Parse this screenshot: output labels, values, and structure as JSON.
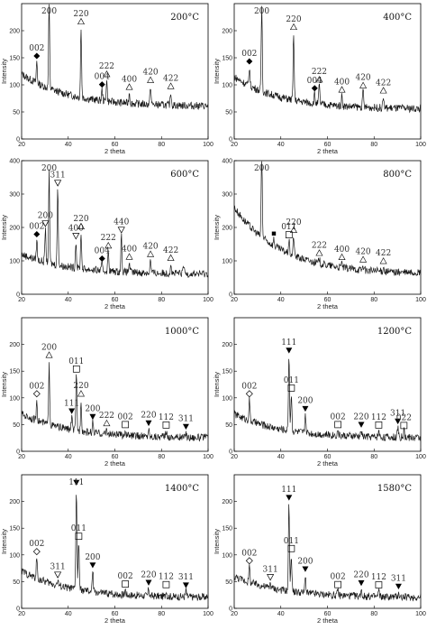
{
  "colors": {
    "line": "#1a1a1a",
    "frame": "#000000",
    "marker": "#000000"
  },
  "chart_data": [
    {
      "type": "line",
      "title": "200°C",
      "xlabel": "2 theta",
      "ylabel": "Intensity",
      "xlim": [
        20,
        100
      ],
      "ylim": [
        0,
        250
      ],
      "xticks": [
        20,
        40,
        60,
        80,
        100
      ],
      "yticks": [
        0,
        50,
        100,
        150,
        200
      ],
      "peaks": [
        {
          "x": 26.5,
          "h": 40,
          "label": "002",
          "marker": "diamond-filled"
        },
        {
          "x": 31.8,
          "h": 165,
          "label": "200"
        },
        {
          "x": 45.5,
          "h": 130,
          "label": "220",
          "marker": "triangle-up"
        },
        {
          "x": 54.5,
          "h": 20,
          "label": "004",
          "marker": "diamond-filled"
        },
        {
          "x": 56.5,
          "h": 40,
          "label": "222",
          "marker": "triangle-up"
        },
        {
          "x": 66.2,
          "h": 20,
          "label": "400",
          "marker": "triangle-up"
        },
        {
          "x": 75.3,
          "h": 35,
          "label": "420",
          "marker": "triangle-up"
        },
        {
          "x": 84.0,
          "h": 25,
          "label": "422",
          "marker": "triangle-up"
        }
      ],
      "baseline": {
        "start": 120,
        "end": 60
      }
    },
    {
      "type": "line",
      "title": "400°C",
      "xlabel": "2 theta",
      "ylabel": "Intensity",
      "xlim": [
        20,
        100
      ],
      "ylim": [
        0,
        250
      ],
      "xticks": [
        20,
        40,
        60,
        80,
        100
      ],
      "yticks": [
        0,
        50,
        100,
        150,
        200
      ],
      "peaks": [
        {
          "x": 26.5,
          "h": 35,
          "label": "002",
          "marker": "diamond-filled"
        },
        {
          "x": 31.8,
          "h": 160,
          "label": "200"
        },
        {
          "x": 45.5,
          "h": 125,
          "label": "220",
          "marker": "triangle-up"
        },
        {
          "x": 54.5,
          "h": 18,
          "label": "004",
          "marker": "diamond-filled"
        },
        {
          "x": 56.5,
          "h": 35,
          "label": "222",
          "marker": "triangle-up"
        },
        {
          "x": 66.2,
          "h": 20,
          "label": "400",
          "marker": "triangle-up"
        },
        {
          "x": 75.3,
          "h": 30,
          "label": "420",
          "marker": "triangle-up"
        },
        {
          "x": 84.0,
          "h": 22,
          "label": "422",
          "marker": "triangle-up"
        }
      ],
      "baseline": {
        "start": 115,
        "end": 55
      }
    },
    {
      "type": "line",
      "title": "600°C",
      "xlabel": "2 theta",
      "ylabel": "Intensity",
      "xlim": [
        20,
        100
      ],
      "ylim": [
        0,
        400
      ],
      "xticks": [
        20,
        40,
        60,
        80,
        100
      ],
      "yticks": [
        0,
        100,
        200,
        300,
        400
      ],
      "peaks": [
        {
          "x": 26.5,
          "h": 60,
          "label": "002",
          "marker": "diamond-filled"
        },
        {
          "x": 30.2,
          "h": 100,
          "label": "200",
          "marker": "triangle-down-open"
        },
        {
          "x": 31.8,
          "h": 270,
          "label": "200"
        },
        {
          "x": 35.5,
          "h": 230,
          "label": "311",
          "marker": "triangle-down-open"
        },
        {
          "x": 43.3,
          "h": 80,
          "label": "400",
          "marker": "triangle-down-open"
        },
        {
          "x": 45.5,
          "h": 110,
          "label": "220",
          "marker": "triangle-up"
        },
        {
          "x": 54.5,
          "h": 20,
          "label": "004",
          "marker": "diamond-filled"
        },
        {
          "x": 57.2,
          "h": 60,
          "label": "222",
          "marker": "triangle-up"
        },
        {
          "x": 62.8,
          "h": 110,
          "label": "440",
          "marker": "triangle-down-open"
        },
        {
          "x": 66.2,
          "h": 30,
          "label": "400",
          "marker": "triangle-up"
        },
        {
          "x": 75.3,
          "h": 40,
          "label": "420",
          "marker": "triangle-up"
        },
        {
          "x": 84.0,
          "h": 30,
          "label": "422",
          "marker": "triangle-up"
        },
        {
          "x": 89.5,
          "h": 25
        }
      ],
      "baseline": {
        "start": 120,
        "end": 60
      }
    },
    {
      "type": "line",
      "title": "800°C",
      "xlabel": "2 theta",
      "ylabel": "Intensity",
      "xlim": [
        20,
        100
      ],
      "ylim": [
        0,
        400
      ],
      "xticks": [
        20,
        40,
        60,
        80,
        100
      ],
      "yticks": [
        0,
        100,
        200,
        300,
        400
      ],
      "peaks": [
        {
          "x": 31.8,
          "h": 270,
          "label": "200"
        },
        {
          "x": 37.0,
          "h": 20,
          "marker": "square-filled"
        },
        {
          "x": 43.5,
          "h": 40,
          "label": "011",
          "marker": "square-open"
        },
        {
          "x": 45.5,
          "h": 60,
          "label": "220",
          "marker": "triangle-up"
        },
        {
          "x": 56.5,
          "h": 15,
          "label": "222",
          "marker": "triangle-up"
        },
        {
          "x": 66.2,
          "h": 15,
          "label": "400",
          "marker": "triangle-up"
        },
        {
          "x": 75.3,
          "h": 15,
          "label": "420",
          "marker": "triangle-up"
        },
        {
          "x": 84.0,
          "h": 15,
          "label": "422",
          "marker": "triangle-up"
        }
      ],
      "baseline": {
        "start": 260,
        "end": 60
      }
    },
    {
      "type": "line",
      "title": "1000°C",
      "xlabel": "2 theta",
      "ylabel": "Intensity",
      "xlim": [
        20,
        100
      ],
      "ylim": [
        0,
        250
      ],
      "xticks": [
        20,
        40,
        60,
        80,
        100
      ],
      "yticks": [
        0,
        50,
        100,
        150,
        200
      ],
      "peaks": [
        {
          "x": 26.5,
          "h": 40,
          "label": "002",
          "marker": "diamond-open"
        },
        {
          "x": 31.8,
          "h": 120,
          "label": "200",
          "marker": "triangle-up"
        },
        {
          "x": 41.5,
          "h": 25,
          "label": "111",
          "marker": "triangle-down-filled"
        },
        {
          "x": 43.5,
          "h": 105,
          "label": "011",
          "marker": "square-open"
        },
        {
          "x": 45.5,
          "h": 60,
          "label": "220",
          "marker": "triangle-up"
        },
        {
          "x": 50.5,
          "h": 20,
          "label": "200",
          "marker": "triangle-down-filled"
        },
        {
          "x": 56.5,
          "h": 10,
          "label": "222",
          "marker": "triangle-up"
        },
        {
          "x": 64.5,
          "h": 10,
          "label": "002",
          "marker": "square-open"
        },
        {
          "x": 74.5,
          "h": 15,
          "label": "220",
          "marker": "triangle-down-filled"
        },
        {
          "x": 82.0,
          "h": 12,
          "label": "112",
          "marker": "square-open"
        },
        {
          "x": 90.5,
          "h": 10,
          "label": "311",
          "marker": "triangle-down-filled"
        }
      ],
      "baseline": {
        "start": 70,
        "end": 25
      }
    },
    {
      "type": "line",
      "title": "1200°C",
      "xlabel": "2 theta",
      "ylabel": "Intensity",
      "xlim": [
        20,
        100
      ],
      "ylim": [
        0,
        250
      ],
      "xticks": [
        20,
        40,
        60,
        80,
        100
      ],
      "yticks": [
        0,
        50,
        100,
        150,
        200
      ],
      "peaks": [
        {
          "x": 26.5,
          "h": 40,
          "label": "002",
          "marker": "diamond-open"
        },
        {
          "x": 43.5,
          "h": 140,
          "label": "111",
          "marker": "triangle-down-filled"
        },
        {
          "x": 44.5,
          "h": 70,
          "label": "011",
          "marker": "square-open"
        },
        {
          "x": 50.5,
          "h": 35,
          "label": "200",
          "marker": "triangle-down-filled"
        },
        {
          "x": 64.5,
          "h": 10,
          "label": "002",
          "marker": "square-open"
        },
        {
          "x": 74.5,
          "h": 12,
          "label": "220",
          "marker": "triangle-down-filled"
        },
        {
          "x": 82.0,
          "h": 12,
          "label": "112",
          "marker": "square-open"
        },
        {
          "x": 90.2,
          "h": 20,
          "label": "311",
          "marker": "triangle-down-filled"
        },
        {
          "x": 92.8,
          "h": 12,
          "label": "022",
          "marker": "square-open"
        }
      ],
      "baseline": {
        "start": 70,
        "end": 25
      }
    },
    {
      "type": "line",
      "title": "1400°C",
      "xlabel": "2 theta",
      "ylabel": "Intensity",
      "xlim": [
        20,
        100
      ],
      "ylim": [
        0,
        250
      ],
      "xticks": [
        20,
        40,
        60,
        80,
        100
      ],
      "yticks": [
        0,
        50,
        100,
        150,
        200
      ],
      "peaks": [
        {
          "x": 26.5,
          "h": 40,
          "label": "002",
          "marker": "diamond-open"
        },
        {
          "x": 35.5,
          "h": 10,
          "label": "311",
          "marker": "triangle-down-open"
        },
        {
          "x": 43.5,
          "h": 190,
          "label": "111",
          "marker": "triangle-down-filled"
        },
        {
          "x": 44.5,
          "h": 90,
          "label": "011",
          "marker": "square-open"
        },
        {
          "x": 50.5,
          "h": 40,
          "label": "200",
          "marker": "triangle-down-filled"
        },
        {
          "x": 64.5,
          "h": 10,
          "label": "002",
          "marker": "square-open"
        },
        {
          "x": 74.5,
          "h": 15,
          "label": "220",
          "marker": "triangle-down-filled"
        },
        {
          "x": 82.0,
          "h": 12,
          "label": "112",
          "marker": "square-open"
        },
        {
          "x": 90.5,
          "h": 12,
          "label": "311",
          "marker": "triangle-down-filled"
        }
      ],
      "baseline": {
        "start": 70,
        "end": 20
      }
    },
    {
      "type": "line",
      "title": "1580°C",
      "xlabel": "2 theta",
      "ylabel": "Intensity",
      "xlim": [
        20,
        100
      ],
      "ylim": [
        0,
        250
      ],
      "xticks": [
        20,
        40,
        60,
        80,
        100
      ],
      "yticks": [
        0,
        50,
        100,
        150,
        200
      ],
      "peaks": [
        {
          "x": 26.5,
          "h": 30,
          "label": "002",
          "marker": "diamond-open"
        },
        {
          "x": 35.5,
          "h": 10,
          "label": "311",
          "marker": "triangle-down-open"
        },
        {
          "x": 43.5,
          "h": 165,
          "label": "111",
          "marker": "triangle-down-filled"
        },
        {
          "x": 44.5,
          "h": 70,
          "label": "011",
          "marker": "square-open"
        },
        {
          "x": 50.5,
          "h": 35,
          "label": "200",
          "marker": "triangle-down-filled"
        },
        {
          "x": 64.5,
          "h": 10,
          "label": "002",
          "marker": "square-open"
        },
        {
          "x": 74.5,
          "h": 15,
          "label": "220",
          "marker": "triangle-down-filled"
        },
        {
          "x": 82.0,
          "h": 12,
          "label": "112",
          "marker": "square-open"
        },
        {
          "x": 90.5,
          "h": 10,
          "label": "311",
          "marker": "triangle-down-filled"
        }
      ],
      "baseline": {
        "start": 60,
        "end": 20
      }
    }
  ]
}
